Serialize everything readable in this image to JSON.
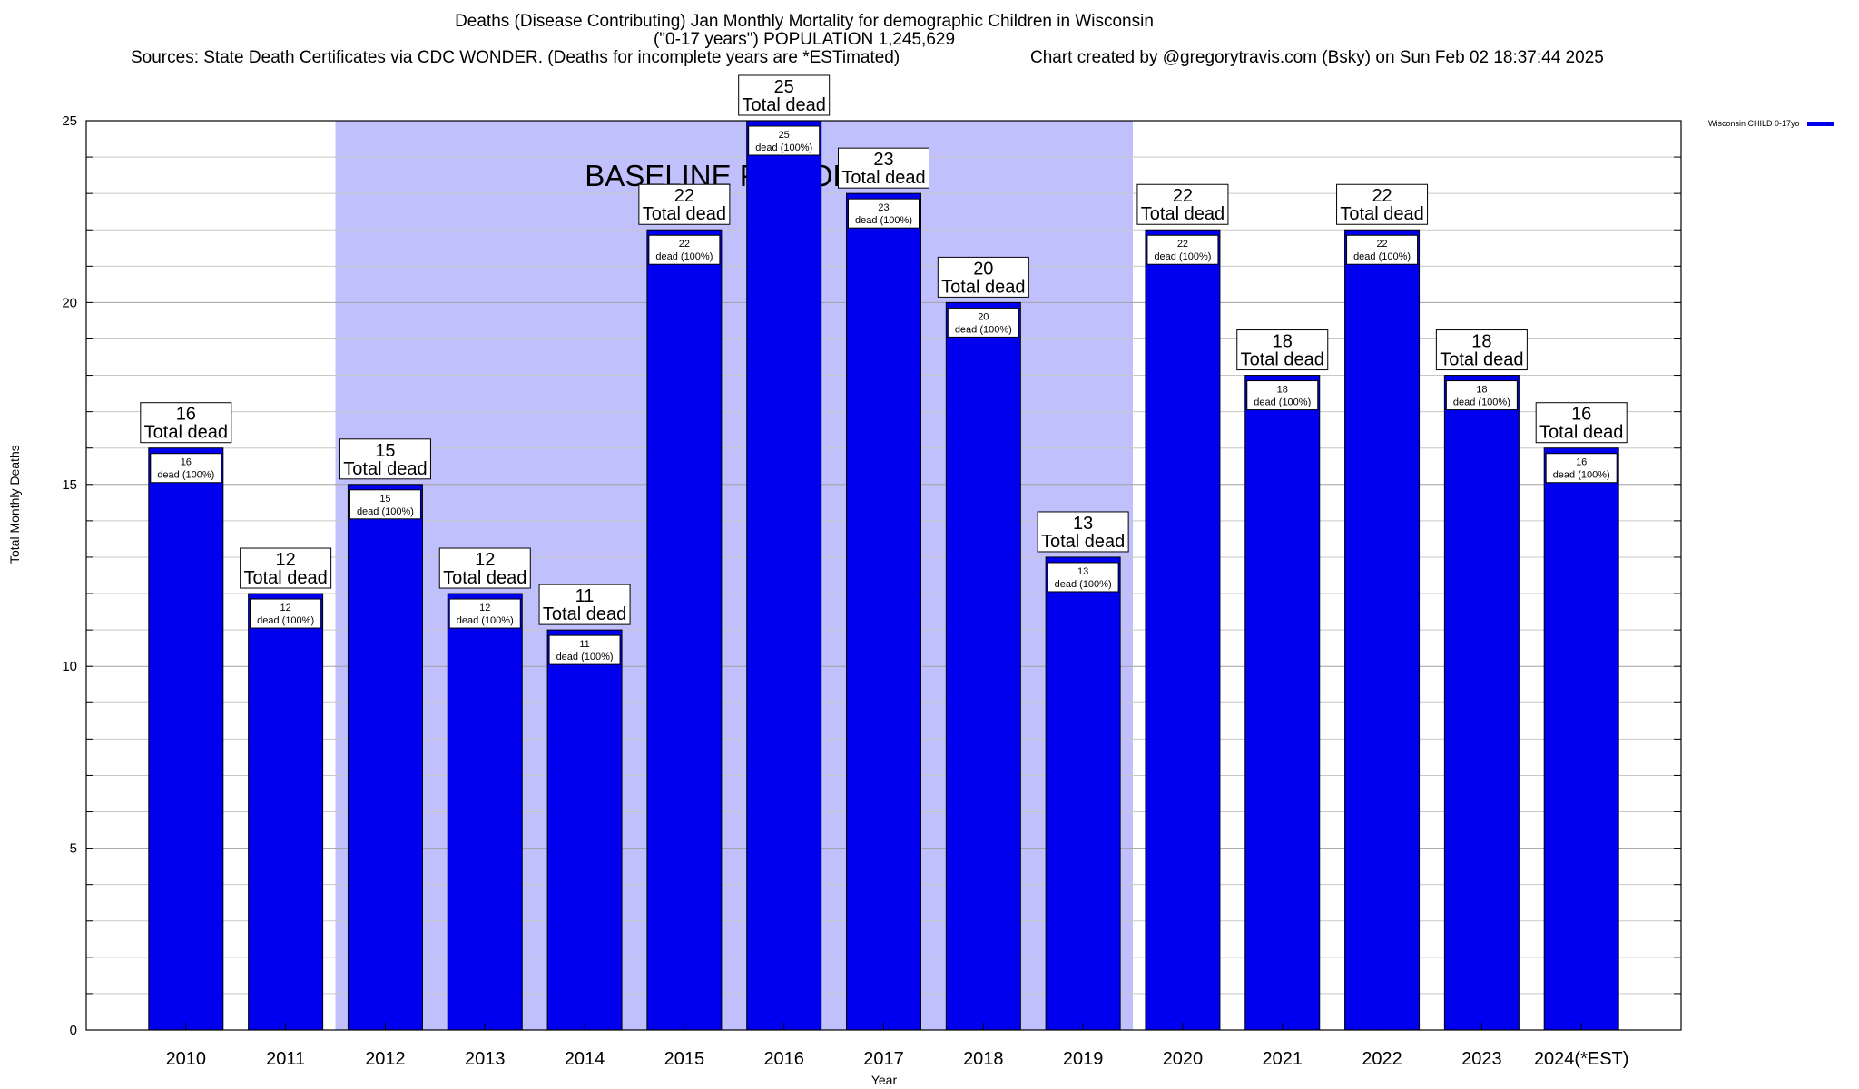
{
  "chart_data": {
    "type": "bar",
    "title": "Deaths (Disease Contributing) Jan Monthly Mortality for demographic Children in Wisconsin",
    "subtitle": "(\"0-17 years\") POPULATION 1,245,629",
    "sources": "Sources: State Death Certificates via CDC WONDER. (Deaths for incomplete years are *ESTimated)",
    "credit": "Chart created by @gregorytravis.com (Bsky) on Sun Feb 02 18:37:44 2025",
    "xlabel": "Year",
    "ylabel": "Total Monthly Deaths",
    "ylim": [
      0,
      25
    ],
    "yticks": [
      "0",
      "5",
      "10",
      "15",
      "20",
      "25"
    ],
    "categories": [
      "2010",
      "2011",
      "2012",
      "2013",
      "2014",
      "2015",
      "2016",
      "2017",
      "2018",
      "2019",
      "2020",
      "2021",
      "2022",
      "2023",
      "2024(*EST)"
    ],
    "series": [
      {
        "name": "Wisconsin CHILD 0-17yo",
        "color": "#0000ee",
        "values": [
          16,
          12,
          15,
          12,
          11,
          22,
          25,
          23,
          20,
          13,
          22,
          18,
          22,
          18,
          16
        ]
      }
    ],
    "baseline": {
      "label": "BASELINE PERIOD",
      "from": "2012",
      "to": "2019",
      "color": "#c0c0fc"
    },
    "total_label_suffix": "Total dead",
    "inner_label_suffix": "dead (100%)",
    "grid": true,
    "legend_position": "top-right"
  }
}
